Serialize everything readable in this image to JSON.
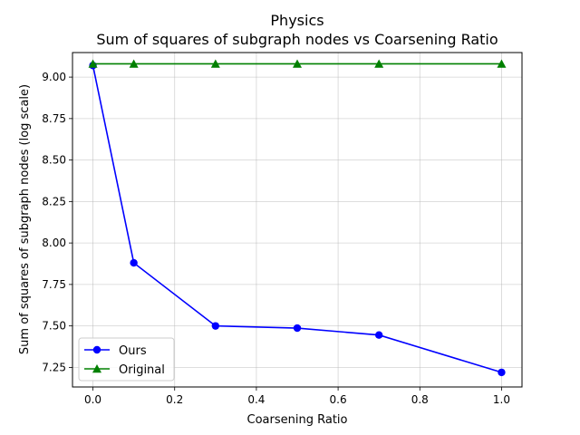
{
  "chart_data": {
    "type": "line",
    "title": "Physics",
    "subtitle": "Sum of squares of subgraph nodes vs Coarsening Ratio",
    "xlabel": "Coarsening Ratio",
    "ylabel": "Sum of squares of subgraph nodes (log scale)",
    "xlim": [
      -0.05,
      1.05
    ],
    "ylim": [
      7.132,
      9.148
    ],
    "xticks": [
      0.0,
      0.2,
      0.4,
      0.6,
      0.8,
      1.0
    ],
    "xtick_labels": [
      "0.0",
      "0.2",
      "0.4",
      "0.6",
      "0.8",
      "1.0"
    ],
    "yticks": [
      7.25,
      7.5,
      7.75,
      8.0,
      8.25,
      8.5,
      8.75,
      9.0
    ],
    "ytick_labels": [
      "7.25",
      "7.50",
      "7.75",
      "8.00",
      "8.25",
      "8.50",
      "8.75",
      "9.00"
    ],
    "grid": true,
    "legend_position": "lower-left",
    "x": [
      0.0,
      0.1,
      0.3,
      0.5,
      0.7,
      1.0
    ],
    "series": [
      {
        "name": "Ours",
        "color": "#0000ff",
        "marker": "circle",
        "values": [
          9.07,
          7.88,
          7.5,
          7.487,
          7.445,
          7.22
        ]
      },
      {
        "name": "Original",
        "color": "#008000",
        "marker": "triangle",
        "values": [
          9.08,
          9.08,
          9.08,
          9.08,
          9.08,
          9.08
        ]
      }
    ]
  }
}
